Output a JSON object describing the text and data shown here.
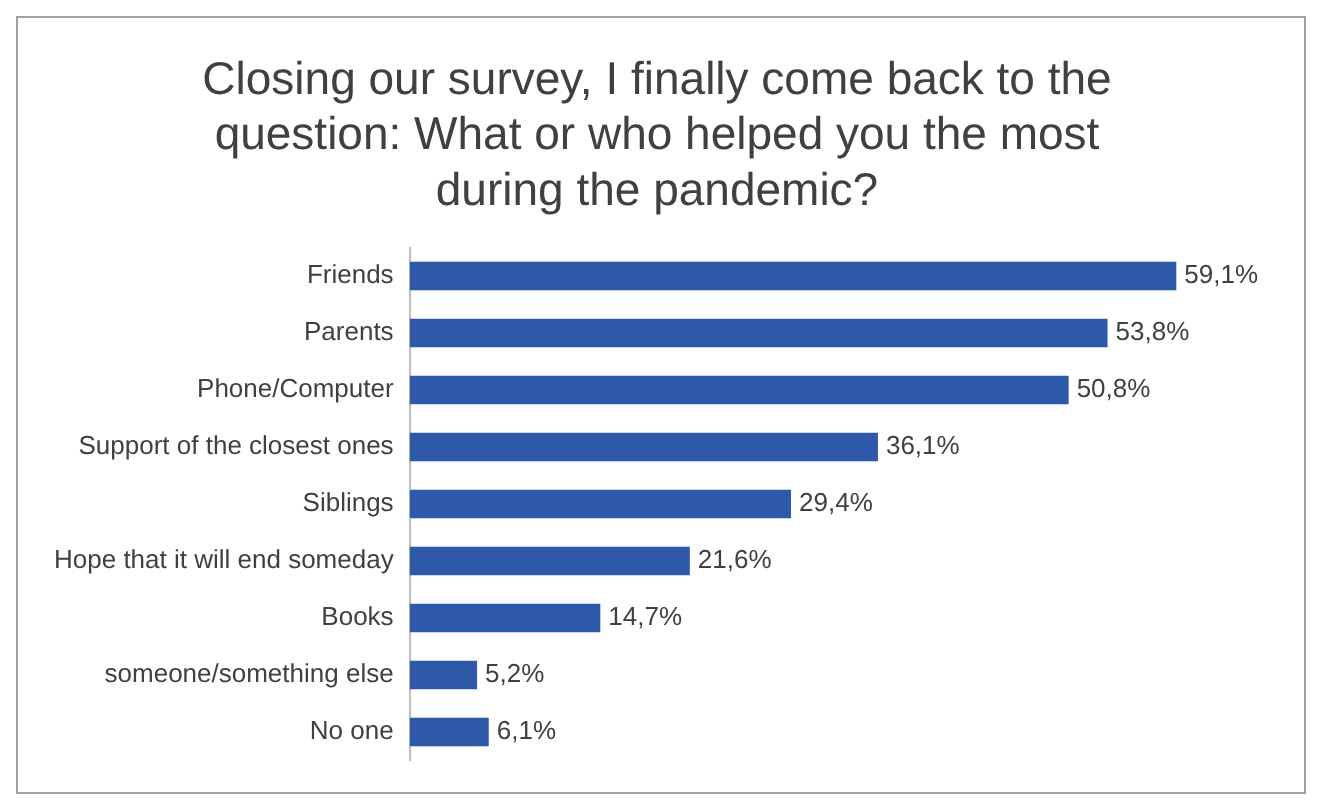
{
  "chart_data": {
    "type": "bar",
    "orientation": "horizontal",
    "title": "Closing our survey, I finally come back to the question: What or who helped you the most during the pandemic?",
    "categories": [
      "Friends",
      "Parents",
      "Phone/Computer",
      "Support of the closest ones",
      "Siblings",
      "Hope that it will end someday",
      "Books",
      "someone/something else",
      "No one"
    ],
    "values": [
      59.1,
      53.8,
      50.8,
      36.1,
      29.4,
      21.6,
      14.7,
      5.2,
      6.1
    ],
    "value_labels": [
      "59,1%",
      "53,8%",
      "50,8%",
      "36,1%",
      "29,4%",
      "21,6%",
      "14,7%",
      "5,2%",
      "6,1%"
    ],
    "color": "#2e58a8",
    "legend": false
  }
}
